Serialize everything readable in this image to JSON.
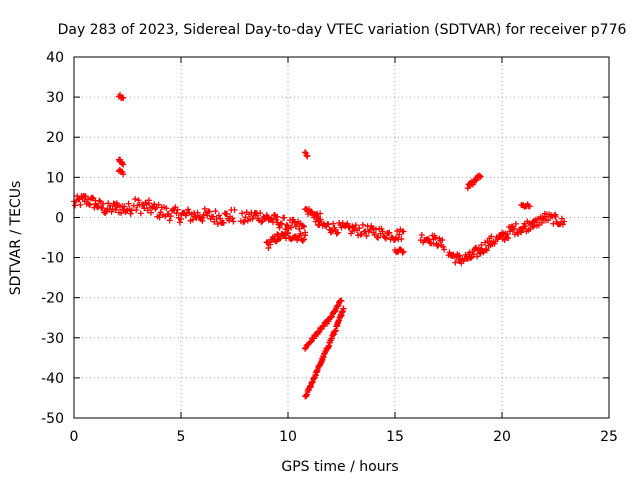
{
  "chart_data": {
    "type": "scatter",
    "title": "Day 283 of 2023, Sidereal Day-to-day VTEC variation (SDTVAR) for receiver p776",
    "xlabel": "GPS time / hours",
    "ylabel": "SDTVAR / TECUs",
    "xlim": [
      0,
      25
    ],
    "ylim": [
      -50,
      40
    ],
    "xticks": [
      0,
      5,
      10,
      15,
      20,
      25
    ],
    "yticks": [
      -50,
      -40,
      -30,
      -20,
      -10,
      0,
      10,
      20,
      30,
      40
    ],
    "grid": true,
    "color": "#ff0000",
    "segments": [
      {
        "points": [
          [
            0.0,
            3.5
          ],
          [
            0.5,
            4.5
          ],
          [
            1.0,
            3.5
          ],
          [
            1.5,
            2.0
          ],
          [
            2.0,
            2.5
          ],
          [
            2.5,
            2.0
          ],
          [
            2.7,
            2.5
          ]
        ],
        "band": 1.5
      },
      {
        "points": [
          [
            2.1,
            30.5
          ],
          [
            2.3,
            30.0
          ]
        ],
        "band": 0.5
      },
      {
        "points": [
          [
            2.1,
            14.5
          ],
          [
            2.3,
            13.0
          ]
        ],
        "band": 0.5
      },
      {
        "points": [
          [
            2.1,
            12.0
          ],
          [
            2.3,
            11.0
          ]
        ],
        "band": 0.5
      },
      {
        "points": [
          [
            2.8,
            3.0
          ],
          [
            3.5,
            2.5
          ],
          [
            4.0,
            1.5
          ],
          [
            5.0,
            0.5
          ],
          [
            6.0,
            0.5
          ],
          [
            7.0,
            0.0
          ],
          [
            7.5,
            0.5
          ]
        ],
        "band": 1.8
      },
      {
        "points": [
          [
            7.8,
            -0.5
          ],
          [
            8.5,
            0.5
          ],
          [
            9.0,
            0.0
          ],
          [
            9.5,
            -1.0
          ],
          [
            10.2,
            -2.0
          ],
          [
            10.8,
            -2.5
          ]
        ],
        "band": 1.5
      },
      {
        "points": [
          [
            9.0,
            -7.0
          ],
          [
            9.5,
            -5.0
          ],
          [
            10.0,
            -4.5
          ],
          [
            10.8,
            -5.0
          ]
        ],
        "band": 1.0
      },
      {
        "points": [
          [
            10.8,
            2.0
          ],
          [
            11.5,
            0.0
          ]
        ],
        "band": 1.0
      },
      {
        "points": [
          [
            10.8,
            16.0
          ],
          [
            10.9,
            15.5
          ]
        ],
        "band": 0.4
      },
      {
        "points": [
          [
            11.3,
            -1.5
          ],
          [
            12.0,
            -2.5
          ],
          [
            13.0,
            -3.0
          ],
          [
            14.0,
            -3.5
          ],
          [
            15.0,
            -4.5
          ],
          [
            15.4,
            -4.0
          ]
        ],
        "band": 1.4
      },
      {
        "points": [
          [
            15.0,
            -8.0
          ],
          [
            15.4,
            -8.5
          ]
        ],
        "band": 0.6
      },
      {
        "points": [
          [
            16.2,
            -5.0
          ],
          [
            16.8,
            -5.5
          ],
          [
            17.3,
            -7.0
          ]
        ],
        "band": 1.2
      },
      {
        "points": [
          [
            17.5,
            -9.0
          ],
          [
            18.0,
            -10.5
          ],
          [
            18.5,
            -10.0
          ],
          [
            19.0,
            -8.0
          ],
          [
            19.5,
            -6.0
          ],
          [
            20.0,
            -5.0
          ],
          [
            20.5,
            -3.0
          ],
          [
            21.0,
            -2.5
          ],
          [
            21.5,
            -1.0
          ]
        ],
        "band": 1.4
      },
      {
        "points": [
          [
            18.4,
            7.5
          ],
          [
            19.0,
            10.5
          ]
        ],
        "band": 0.6
      },
      {
        "points": [
          [
            20.9,
            3.0
          ],
          [
            21.3,
            3.0
          ]
        ],
        "band": 0.4
      },
      {
        "points": [
          [
            21.4,
            -2.0
          ],
          [
            22.0,
            0.0
          ],
          [
            22.5,
            -0.5
          ],
          [
            22.9,
            -1.5
          ]
        ],
        "band": 1.2
      },
      {
        "points": [
          [
            10.8,
            -32.5
          ],
          [
            11.5,
            -28.0
          ],
          [
            12.0,
            -25.0
          ],
          [
            12.5,
            -20.5
          ]
        ],
        "band": 0.4
      },
      {
        "points": [
          [
            10.8,
            -45.0
          ],
          [
            11.3,
            -39.0
          ],
          [
            11.8,
            -33.0
          ],
          [
            12.3,
            -27.0
          ],
          [
            12.6,
            -22.5
          ]
        ],
        "band": 0.4
      }
    ]
  }
}
